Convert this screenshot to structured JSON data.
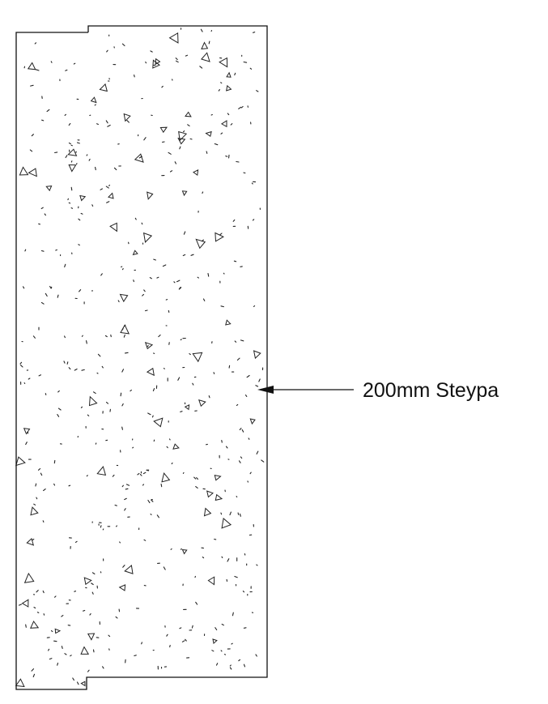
{
  "callout": {
    "label": "200mm Steypa"
  },
  "material": {
    "hatch": "concrete-aggregate",
    "ink_color": "#111111",
    "paper_color": "#ffffff"
  }
}
